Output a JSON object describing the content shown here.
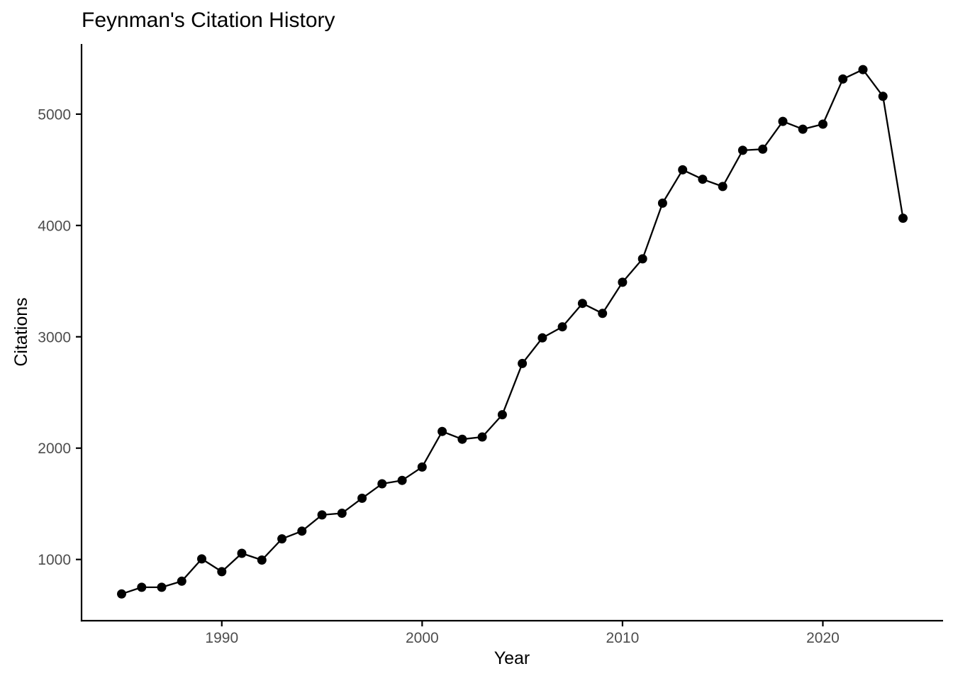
{
  "chart_data": {
    "type": "line",
    "title": "Feynman's Citation History",
    "xlabel": "Year",
    "ylabel": "Citations",
    "x": [
      1985,
      1986,
      1987,
      1988,
      1989,
      1990,
      1991,
      1992,
      1993,
      1994,
      1995,
      1996,
      1997,
      1998,
      1999,
      2000,
      2001,
      2002,
      2003,
      2004,
      2005,
      2006,
      2007,
      2008,
      2009,
      2010,
      2011,
      2012,
      2013,
      2014,
      2015,
      2016,
      2017,
      2018,
      2019,
      2020,
      2021,
      2022,
      2023,
      2024
    ],
    "values": [
      690,
      750,
      750,
      805,
      1005,
      890,
      1055,
      995,
      1185,
      1255,
      1400,
      1415,
      1550,
      1680,
      1710,
      1830,
      2150,
      2080,
      2100,
      2300,
      2760,
      2990,
      3090,
      3300,
      3210,
      3490,
      3700,
      4200,
      4500,
      4415,
      4350,
      4675,
      4685,
      4935,
      4865,
      4910,
      5315,
      5400,
      5160,
      4065
    ],
    "x_ticks": [
      1990,
      2000,
      2010,
      2020
    ],
    "y_ticks": [
      1000,
      2000,
      3000,
      4000,
      5000
    ],
    "xlim": [
      1983,
      2026
    ],
    "ylim": [
      450,
      5630
    ],
    "grid": false,
    "legend": "none",
    "marker": "filled-circle",
    "point_radius": 6.5,
    "line_width": 2.3,
    "colors": {
      "line": "#000000",
      "point": "#000000",
      "axis": "#000000",
      "tick": "#000000",
      "tick_label": "#4d4d4d",
      "text": "#000000",
      "background": "#ffffff"
    }
  }
}
